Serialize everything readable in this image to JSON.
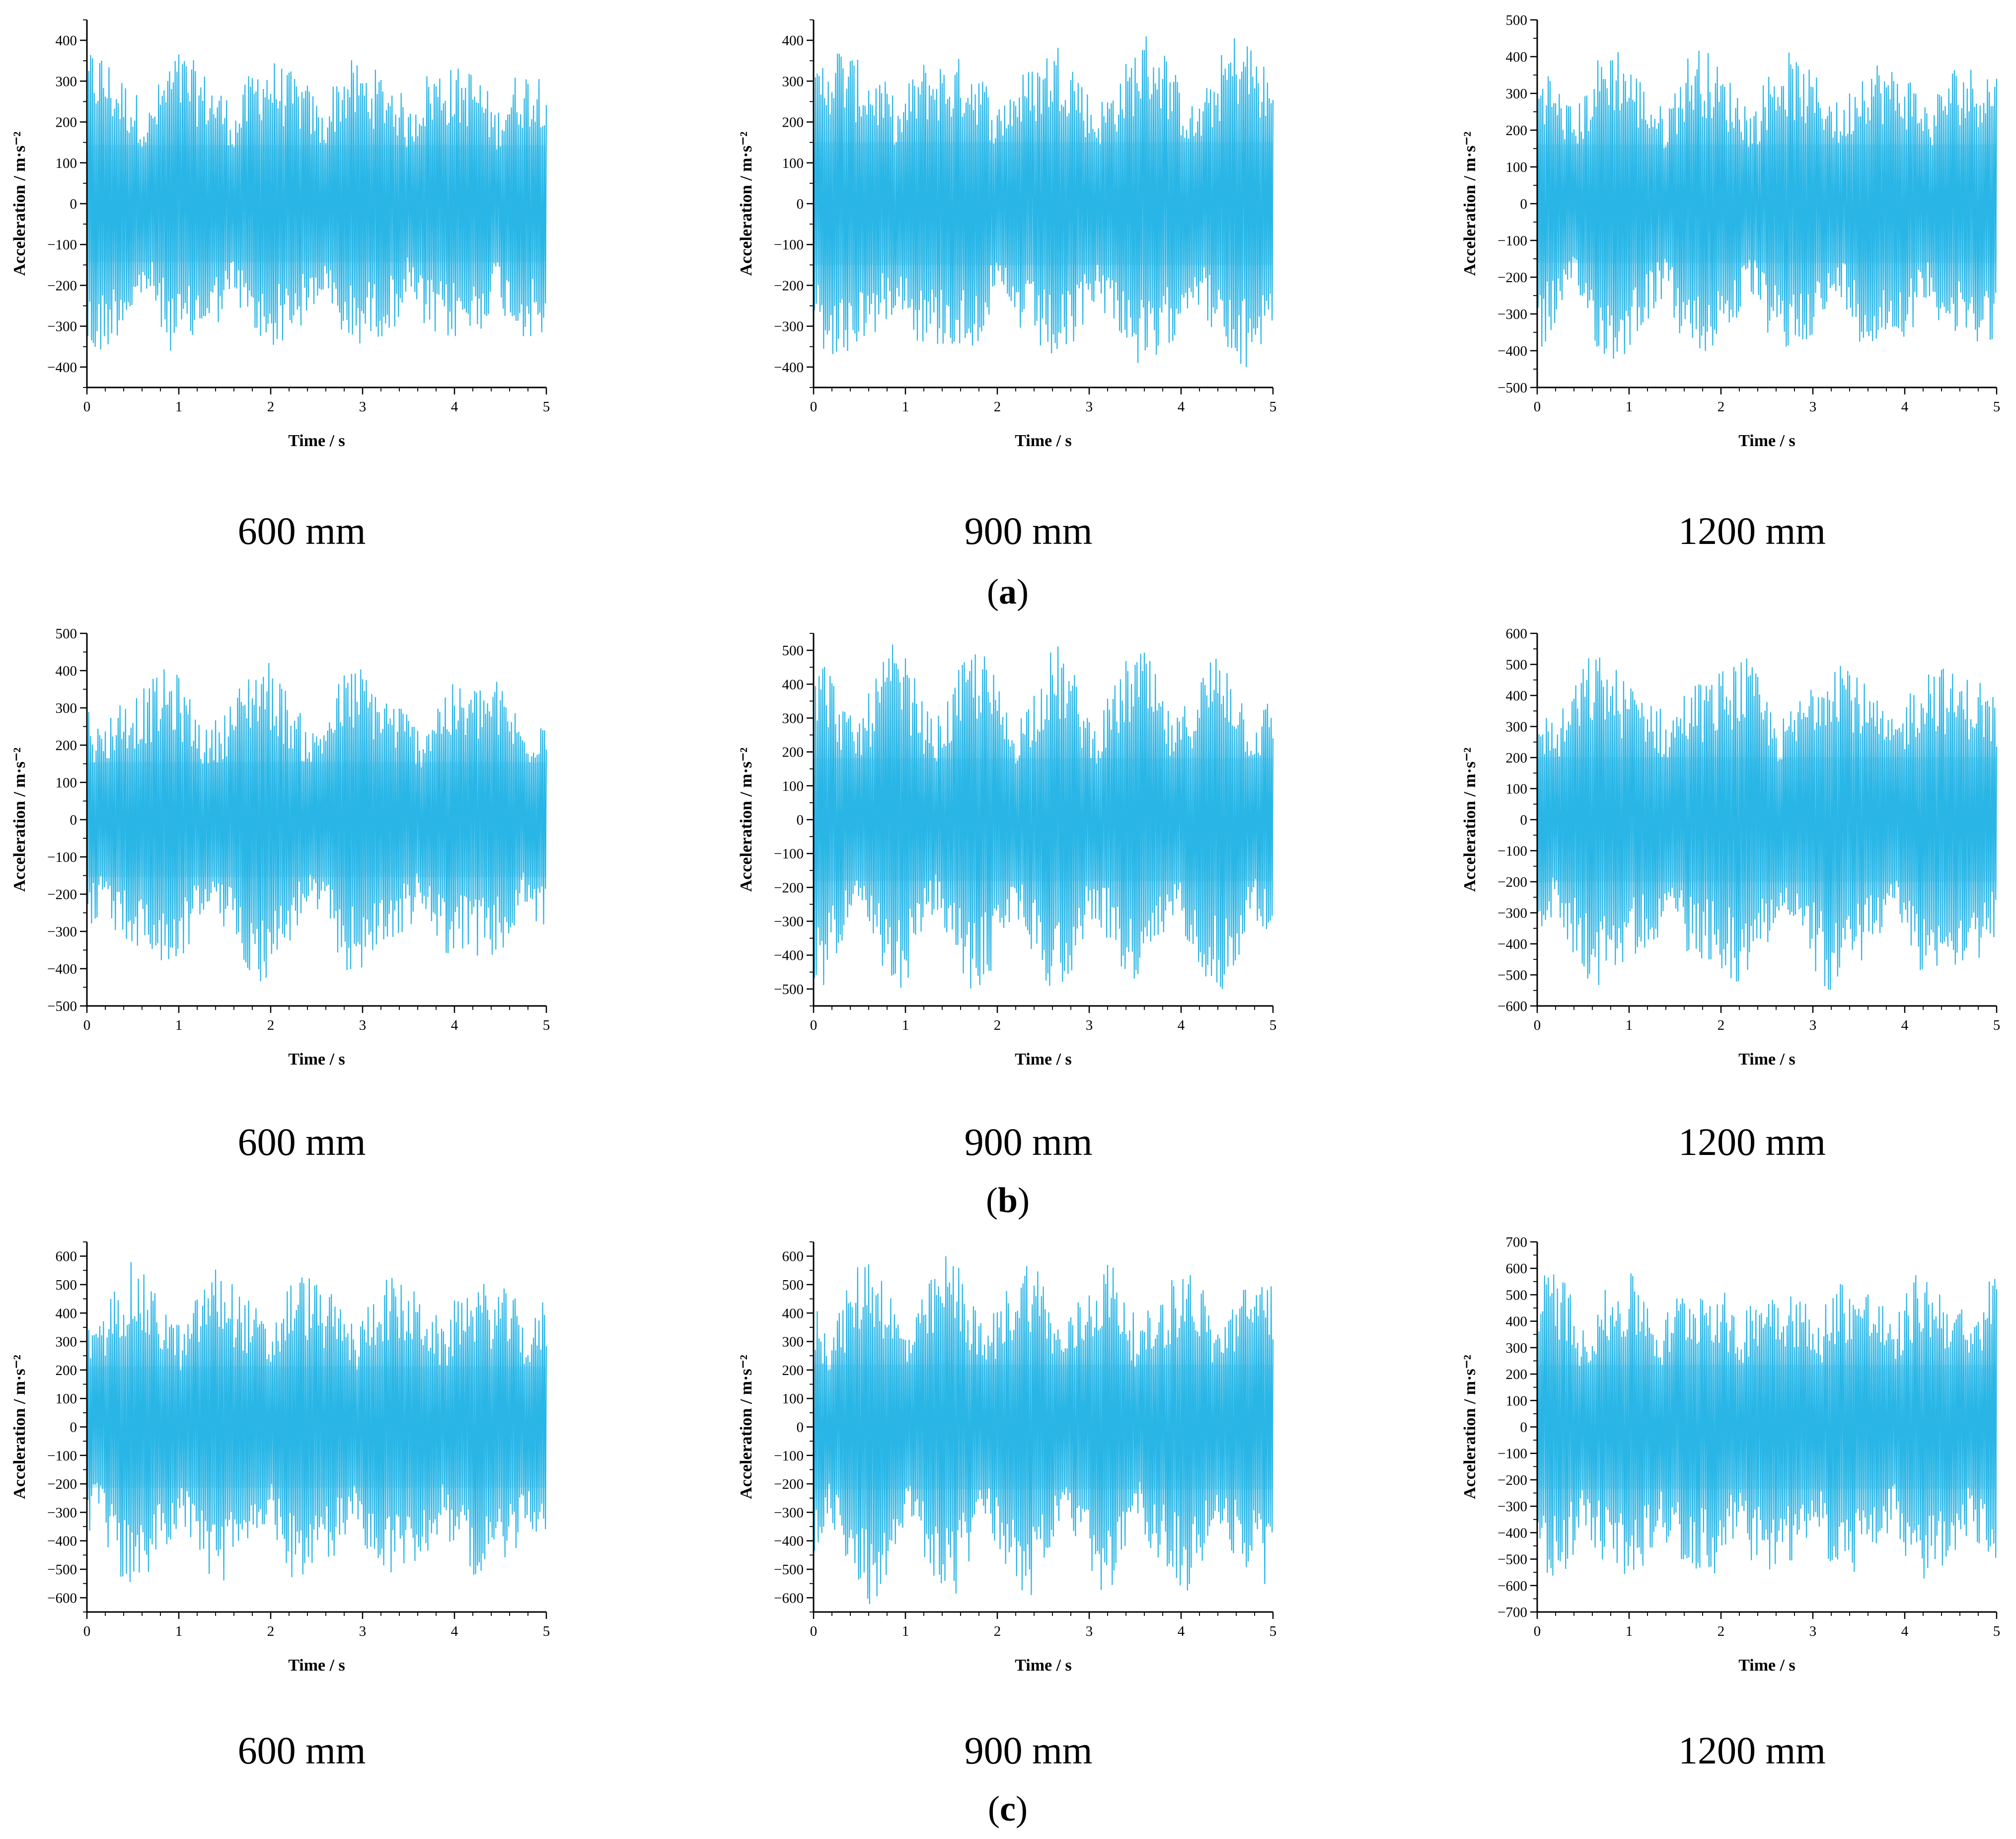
{
  "figure": {
    "line_color": "#29B6E6",
    "fill_color": "#7DD3F5",
    "rows": [
      {
        "label_open": "(",
        "label_letter": "a",
        "label_close": ")"
      },
      {
        "label_open": "(",
        "label_letter": "b",
        "label_close": ")"
      },
      {
        "label_open": "(",
        "label_letter": "c",
        "label_close": ")"
      }
    ]
  },
  "chart_data": [
    {
      "type": "line",
      "row": "a",
      "caption": "600 mm",
      "xlabel": "Time / s",
      "ylabel": "Acceleration / m·s⁻²",
      "xlim": [
        0,
        5
      ],
      "ylim": [
        -450,
        450
      ],
      "xticks": [
        0,
        1,
        2,
        3,
        4,
        5
      ],
      "yticks": [
        -400,
        -300,
        -200,
        -100,
        0,
        100,
        200,
        300,
        400
      ],
      "peak_amplitude": 410,
      "samples": 500
    },
    {
      "type": "line",
      "row": "a",
      "caption": "900 mm",
      "xlabel": "Time / s",
      "ylabel": "Acceleration / m·s⁻²",
      "xlim": [
        0,
        5
      ],
      "ylim": [
        -450,
        450
      ],
      "xticks": [
        0,
        1,
        2,
        3,
        4,
        5
      ],
      "yticks": [
        -400,
        -300,
        -200,
        -100,
        0,
        100,
        200,
        300,
        400
      ],
      "peak_amplitude": 430,
      "samples": 500
    },
    {
      "type": "line",
      "row": "a",
      "caption": "1200 mm",
      "xlabel": "Time / s",
      "ylabel": "Acceleration / m·s⁻²",
      "xlim": [
        0,
        5
      ],
      "ylim": [
        -500,
        500
      ],
      "xticks": [
        0,
        1,
        2,
        3,
        4,
        5
      ],
      "yticks": [
        -500,
        -400,
        -300,
        -200,
        -100,
        0,
        100,
        200,
        300,
        400,
        500
      ],
      "peak_amplitude": 460,
      "samples": 500
    },
    {
      "type": "line",
      "row": "b",
      "caption": "600 mm",
      "xlabel": "Time / s",
      "ylabel": "Acceleration / m·s⁻²",
      "xlim": [
        0,
        5
      ],
      "ylim": [
        -500,
        500
      ],
      "xticks": [
        0,
        1,
        2,
        3,
        4,
        5
      ],
      "yticks": [
        -500,
        -400,
        -300,
        -200,
        -100,
        0,
        100,
        200,
        300,
        400,
        500
      ],
      "peak_amplitude": 440,
      "samples": 500
    },
    {
      "type": "line",
      "row": "b",
      "caption": "900 mm",
      "xlabel": "Time / s",
      "ylabel": "Acceleration / m·s⁻²",
      "xlim": [
        0,
        5
      ],
      "ylim": [
        -550,
        550
      ],
      "xticks": [
        0,
        1,
        2,
        3,
        4,
        5
      ],
      "yticks": [
        -500,
        -400,
        -300,
        -200,
        -100,
        0,
        100,
        200,
        300,
        400,
        500
      ],
      "peak_amplitude": 520,
      "samples": 500
    },
    {
      "type": "line",
      "row": "b",
      "caption": "1200 mm",
      "xlabel": "Time / s",
      "ylabel": "Acceleration / m·s⁻²",
      "xlim": [
        0,
        5
      ],
      "ylim": [
        -600,
        600
      ],
      "xticks": [
        0,
        1,
        2,
        3,
        4,
        5
      ],
      "yticks": [
        -600,
        -500,
        -400,
        -300,
        -200,
        -100,
        0,
        100,
        200,
        300,
        400,
        500,
        600
      ],
      "peak_amplitude": 575,
      "samples": 500
    },
    {
      "type": "line",
      "row": "c",
      "caption": "600 mm",
      "xlabel": "Time / s",
      "ylabel": "Acceleration / m·s⁻²",
      "xlim": [
        0,
        5
      ],
      "ylim": [
        -650,
        650
      ],
      "xticks": [
        0,
        1,
        2,
        3,
        4,
        5
      ],
      "yticks": [
        -600,
        -500,
        -400,
        -300,
        -200,
        -100,
        0,
        100,
        200,
        300,
        400,
        500,
        600
      ],
      "peak_amplitude": 610,
      "samples": 500
    },
    {
      "type": "line",
      "row": "c",
      "caption": "900 mm",
      "xlabel": "Time / s",
      "ylabel": "Acceleration / m·s⁻²",
      "xlim": [
        0,
        5
      ],
      "ylim": [
        -650,
        650
      ],
      "xticks": [
        0,
        1,
        2,
        3,
        4,
        5
      ],
      "yticks": [
        -600,
        -500,
        -400,
        -300,
        -200,
        -100,
        0,
        100,
        200,
        300,
        400,
        500,
        600
      ],
      "peak_amplitude": 625,
      "samples": 500
    },
    {
      "type": "line",
      "row": "c",
      "caption": "1200 mm",
      "xlabel": "Time / s",
      "ylabel": "Acceleration / m·s⁻²",
      "xlim": [
        0,
        5
      ],
      "ylim": [
        -700,
        700
      ],
      "xticks": [
        0,
        1,
        2,
        3,
        4,
        5
      ],
      "yticks": [
        -700,
        -600,
        -500,
        -400,
        -300,
        -200,
        -100,
        0,
        100,
        200,
        300,
        400,
        500,
        600,
        700
      ],
      "peak_amplitude": 670,
      "samples": 500
    }
  ]
}
